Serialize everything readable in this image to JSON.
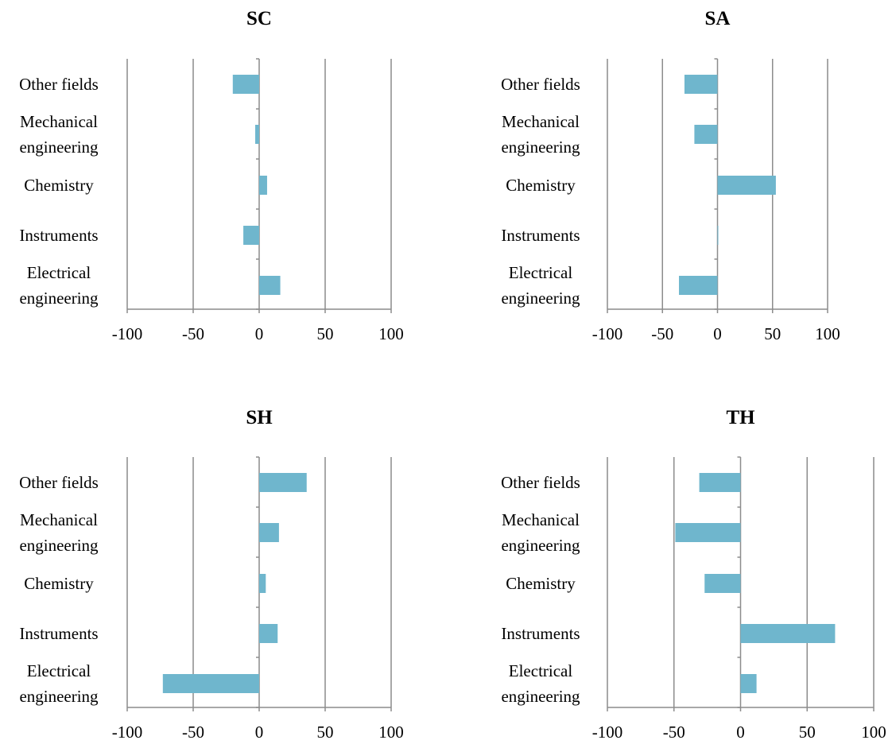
{
  "chart_data": [
    {
      "type": "bar",
      "orientation": "horizontal",
      "title": "SC",
      "categories": [
        "Other fields",
        "Mechanical engineering",
        "Chemistry",
        "Instruments",
        "Electrical engineering"
      ],
      "values": [
        -20,
        -3,
        6,
        -12,
        16
      ],
      "xlim": [
        -100,
        100
      ],
      "xticks": [
        -100,
        -50,
        0,
        50,
        100
      ],
      "grid": true,
      "color": "#6FB6CD"
    },
    {
      "type": "bar",
      "orientation": "horizontal",
      "title": "SA",
      "categories": [
        "Other fields",
        "Mechanical engineering",
        "Chemistry",
        "Instruments",
        "Electrical engineering"
      ],
      "values": [
        -30,
        -21,
        53,
        0.5,
        -35
      ],
      "xlim": [
        -100,
        100
      ],
      "xticks": [
        -100,
        -50,
        0,
        50,
        100
      ],
      "grid": true,
      "color": "#6FB6CD"
    },
    {
      "type": "bar",
      "orientation": "horizontal",
      "title": "SH",
      "categories": [
        "Other fields",
        "Mechanical engineering",
        "Chemistry",
        "Instruments",
        "Electrical engineering"
      ],
      "values": [
        36,
        15,
        5,
        14,
        -73
      ],
      "xlim": [
        -100,
        100
      ],
      "xticks": [
        -100,
        -50,
        0,
        50,
        100
      ],
      "grid": true,
      "color": "#6FB6CD"
    },
    {
      "type": "bar",
      "orientation": "horizontal",
      "title": "TH",
      "categories": [
        "Other fields",
        "Mechanical engineering",
        "Chemistry",
        "Instruments",
        "Electrical engineering"
      ],
      "values": [
        -31,
        -49,
        -27,
        71,
        12
      ],
      "xlim": [
        -100,
        100
      ],
      "xticks": [
        -100,
        -50,
        0,
        50,
        100
      ],
      "grid": true,
      "color": "#6FB6CD"
    }
  ]
}
